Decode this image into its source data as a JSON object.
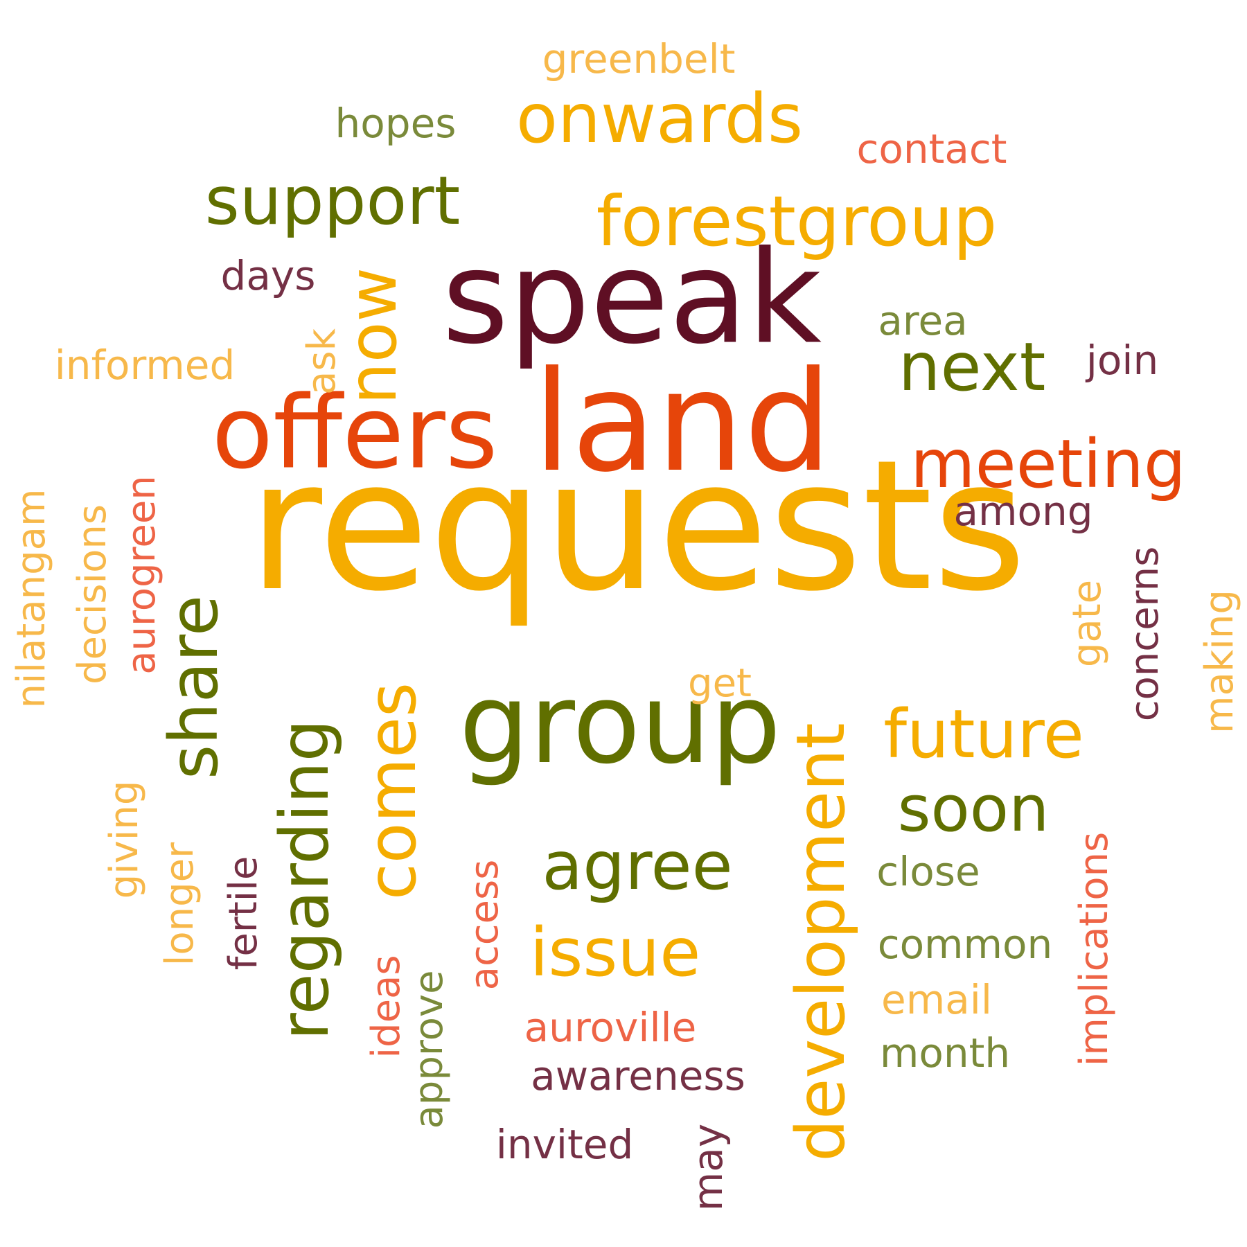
{
  "palette": {
    "gold": "#f5ac00",
    "light_gold": "#f7b84a",
    "olive": "#606f00",
    "light_olive": "#7a8a3a",
    "maroon": "#5f0f24",
    "plum": "#743045",
    "orange_red": "#e6450a",
    "coral": "#ee6446"
  },
  "words": [
    {
      "text": "requests",
      "color": "gold"
    },
    {
      "text": "speak",
      "color": "maroon"
    },
    {
      "text": "land",
      "color": "orange_red"
    },
    {
      "text": "offers",
      "color": "orange_red"
    },
    {
      "text": "group",
      "color": "olive"
    },
    {
      "text": "forestgroup",
      "color": "gold"
    },
    {
      "text": "onwards",
      "color": "gold"
    },
    {
      "text": "support",
      "color": "olive"
    },
    {
      "text": "meeting",
      "color": "orange_red"
    },
    {
      "text": "next",
      "color": "olive"
    },
    {
      "text": "future",
      "color": "gold"
    },
    {
      "text": "agree",
      "color": "olive"
    },
    {
      "text": "issue",
      "color": "gold"
    },
    {
      "text": "soon",
      "color": "olive"
    },
    {
      "text": "greenbelt",
      "color": "light_gold"
    },
    {
      "text": "hopes",
      "color": "light_olive"
    },
    {
      "text": "contact",
      "color": "coral"
    },
    {
      "text": "days",
      "color": "plum"
    },
    {
      "text": "area",
      "color": "light_olive"
    },
    {
      "text": "join",
      "color": "plum"
    },
    {
      "text": "informed",
      "color": "light_gold"
    },
    {
      "text": "among",
      "color": "plum"
    },
    {
      "text": "get",
      "color": "light_gold"
    },
    {
      "text": "close",
      "color": "light_olive"
    },
    {
      "text": "common",
      "color": "light_olive"
    },
    {
      "text": "email",
      "color": "light_gold"
    },
    {
      "text": "month",
      "color": "light_olive"
    },
    {
      "text": "auroville",
      "color": "coral"
    },
    {
      "text": "awareness",
      "color": "plum"
    },
    {
      "text": "invited",
      "color": "plum"
    },
    {
      "text": "now",
      "color": "gold"
    },
    {
      "text": "ask",
      "color": "light_gold"
    },
    {
      "text": "share",
      "color": "olive"
    },
    {
      "text": "regarding",
      "color": "olive"
    },
    {
      "text": "comes",
      "color": "gold"
    },
    {
      "text": "development",
      "color": "gold"
    },
    {
      "text": "aurogreen",
      "color": "coral"
    },
    {
      "text": "decisions",
      "color": "light_gold"
    },
    {
      "text": "nilatangam",
      "color": "light_gold"
    },
    {
      "text": "giving",
      "color": "light_gold"
    },
    {
      "text": "longer",
      "color": "light_gold"
    },
    {
      "text": "fertile",
      "color": "plum"
    },
    {
      "text": "ideas",
      "color": "coral"
    },
    {
      "text": "approve",
      "color": "light_olive"
    },
    {
      "text": "access",
      "color": "coral"
    },
    {
      "text": "may",
      "color": "plum"
    },
    {
      "text": "gate",
      "color": "light_gold"
    },
    {
      "text": "concerns",
      "color": "plum"
    },
    {
      "text": "making",
      "color": "light_gold"
    },
    {
      "text": "implications",
      "color": "coral"
    }
  ]
}
